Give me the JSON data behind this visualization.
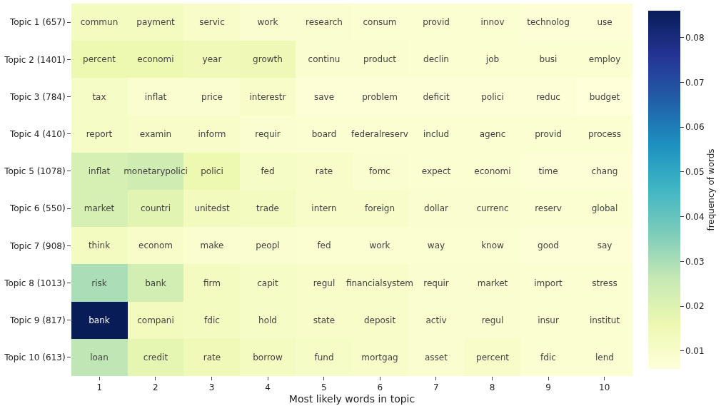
{
  "chart_data": {
    "type": "heatmap",
    "xlabel": "Most likely words in topic",
    "clabel": "frequency of words",
    "categories": [
      "1",
      "2",
      "3",
      "4",
      "5",
      "6",
      "7",
      "8",
      "9",
      "10"
    ],
    "y_categories": [
      "Topic 1 (657)",
      "Topic 2 (1401)",
      "Topic 3 (784)",
      "Topic 4 (410)",
      "Topic 5 (1078)",
      "Topic 6 (550)",
      "Topic 7 (908)",
      "Topic 8 (1013)",
      "Topic 9 (817)",
      "Topic 10 (613)"
    ],
    "cells": [
      [
        0.012,
        0.012,
        0.01,
        0.009,
        0.009,
        0.008,
        0.008,
        0.008,
        0.007,
        0.007
      ],
      [
        0.016,
        0.016,
        0.014,
        0.015,
        0.009,
        0.009,
        0.008,
        0.008,
        0.008,
        0.008
      ],
      [
        0.011,
        0.009,
        0.009,
        0.01,
        0.007,
        0.007,
        0.007,
        0.007,
        0.007,
        0.006
      ],
      [
        0.011,
        0.01,
        0.01,
        0.009,
        0.008,
        0.008,
        0.008,
        0.008,
        0.008,
        0.008
      ],
      [
        0.022,
        0.024,
        0.016,
        0.011,
        0.01,
        0.009,
        0.008,
        0.008,
        0.007,
        0.007
      ],
      [
        0.022,
        0.019,
        0.013,
        0.012,
        0.01,
        0.01,
        0.009,
        0.009,
        0.008,
        0.008
      ],
      [
        0.012,
        0.01,
        0.009,
        0.009,
        0.008,
        0.008,
        0.008,
        0.008,
        0.007,
        0.007
      ],
      [
        0.03,
        0.023,
        0.012,
        0.011,
        0.01,
        0.01,
        0.009,
        0.009,
        0.008,
        0.008
      ],
      [
        0.086,
        0.013,
        0.012,
        0.011,
        0.01,
        0.01,
        0.009,
        0.009,
        0.008,
        0.008
      ],
      [
        0.027,
        0.018,
        0.014,
        0.012,
        0.011,
        0.01,
        0.009,
        0.01,
        0.008,
        0.008
      ]
    ],
    "cell_labels": [
      [
        "commun",
        "payment",
        "servic",
        "work",
        "research",
        "consum",
        "provid",
        "innov",
        "technolog",
        "use"
      ],
      [
        "percent",
        "economi",
        "year",
        "growth",
        "continu",
        "product",
        "declin",
        "job",
        "busi",
        "employ"
      ],
      [
        "tax",
        "inflat",
        "price",
        "interestr",
        "save",
        "problem",
        "deficit",
        "polici",
        "reduc",
        "budget"
      ],
      [
        "report",
        "examin",
        "inform",
        "requir",
        "board",
        "federalreserv",
        "includ",
        "agenc",
        "provid",
        "process"
      ],
      [
        "inflat",
        "monetarypolici",
        "polici",
        "fed",
        "rate",
        "fomc",
        "expect",
        "economi",
        "time",
        "chang"
      ],
      [
        "market",
        "countri",
        "unitedst",
        "trade",
        "intern",
        "foreign",
        "dollar",
        "currenc",
        "reserv",
        "global"
      ],
      [
        "think",
        "econom",
        "make",
        "peopl",
        "fed",
        "work",
        "way",
        "know",
        "good",
        "say"
      ],
      [
        "risk",
        "bank",
        "firm",
        "capit",
        "regul",
        "financialsystem",
        "requir",
        "market",
        "import",
        "stress"
      ],
      [
        "bank",
        "compani",
        "fdic",
        "hold",
        "state",
        "deposit",
        "activ",
        "regul",
        "insur",
        "institut"
      ],
      [
        "loan",
        "credit",
        "rate",
        "borrow",
        "fund",
        "mortgag",
        "asset",
        "percent",
        "fdic",
        "lend"
      ]
    ],
    "clim": [
      0.006,
      0.086
    ],
    "cticks": [
      0.01,
      0.02,
      0.03,
      0.04,
      0.05,
      0.06,
      0.07,
      0.08
    ]
  }
}
